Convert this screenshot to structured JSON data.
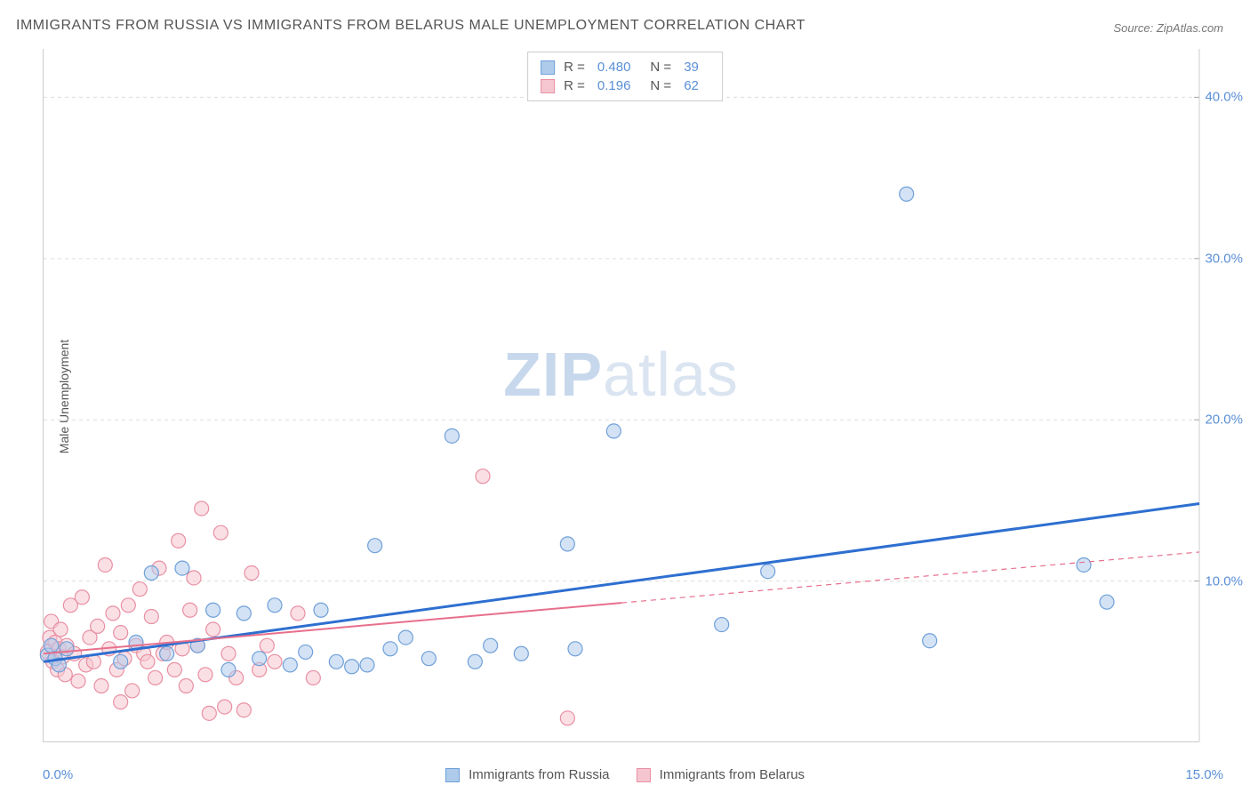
{
  "title": "IMMIGRANTS FROM RUSSIA VS IMMIGRANTS FROM BELARUS MALE UNEMPLOYMENT CORRELATION CHART",
  "source": "Source: ZipAtlas.com",
  "ylabel": "Male Unemployment",
  "watermark_a": "ZIP",
  "watermark_b": "atlas",
  "chart": {
    "type": "scatter",
    "xlim": [
      0,
      15
    ],
    "ylim": [
      0,
      43
    ],
    "y_ticks": [
      10,
      20,
      30,
      40
    ],
    "y_tick_labels": [
      "10.0%",
      "20.0%",
      "30.0%",
      "40.0%"
    ],
    "x_tick_left": "0.0%",
    "x_tick_right": "15.0%",
    "grid_color": "#dddddd",
    "background": "#ffffff",
    "marker_radius": 8,
    "marker_opacity": 0.55,
    "series": [
      {
        "id": "russia",
        "label": "Immigrants from Russia",
        "color_fill": "#aecbeb",
        "color_stroke": "#6fa0d9",
        "r": "0.480",
        "n": "39",
        "trend": {
          "x1": 0,
          "y1": 5.0,
          "x2": 15,
          "y2": 14.8,
          "solid_until_x": 15,
          "stroke_width": 3
        },
        "points": [
          [
            0.05,
            5.4
          ],
          [
            0.1,
            6.0
          ],
          [
            0.15,
            5.2
          ],
          [
            0.2,
            4.8
          ],
          [
            0.3,
            5.8
          ],
          [
            1.0,
            5.0
          ],
          [
            1.2,
            6.2
          ],
          [
            1.4,
            10.5
          ],
          [
            1.6,
            5.5
          ],
          [
            1.8,
            10.8
          ],
          [
            2.0,
            6.0
          ],
          [
            2.2,
            8.2
          ],
          [
            2.4,
            4.5
          ],
          [
            2.6,
            8.0
          ],
          [
            2.8,
            5.2
          ],
          [
            3.0,
            8.5
          ],
          [
            3.2,
            4.8
          ],
          [
            3.4,
            5.6
          ],
          [
            3.6,
            8.2
          ],
          [
            3.8,
            5.0
          ],
          [
            4.0,
            4.7
          ],
          [
            4.3,
            12.2
          ],
          [
            4.5,
            5.8
          ],
          [
            4.7,
            6.5
          ],
          [
            5.0,
            5.2
          ],
          [
            5.3,
            19.0
          ],
          [
            5.6,
            5.0
          ],
          [
            5.8,
            6.0
          ],
          [
            6.2,
            5.5
          ],
          [
            6.8,
            12.3
          ],
          [
            6.9,
            5.8
          ],
          [
            7.4,
            19.3
          ],
          [
            8.8,
            7.3
          ],
          [
            9.4,
            10.6
          ],
          [
            11.2,
            34.0
          ],
          [
            11.5,
            6.3
          ],
          [
            13.5,
            11.0
          ],
          [
            13.8,
            8.7
          ],
          [
            4.2,
            4.8
          ]
        ]
      },
      {
        "id": "belarus",
        "label": "Immigrants from Belarus",
        "color_fill": "#f6c6d0",
        "color_stroke": "#e98fa3",
        "r": "0.196",
        "n": "62",
        "trend": {
          "x1": 0,
          "y1": 5.5,
          "x2": 15,
          "y2": 11.8,
          "solid_until_x": 7.5,
          "stroke_width": 2
        },
        "points": [
          [
            0.05,
            5.6
          ],
          [
            0.08,
            6.5
          ],
          [
            0.1,
            7.5
          ],
          [
            0.12,
            5.0
          ],
          [
            0.15,
            6.2
          ],
          [
            0.18,
            4.5
          ],
          [
            0.2,
            5.8
          ],
          [
            0.22,
            7.0
          ],
          [
            0.25,
            5.3
          ],
          [
            0.28,
            4.2
          ],
          [
            0.3,
            6.0
          ],
          [
            0.35,
            8.5
          ],
          [
            0.4,
            5.5
          ],
          [
            0.45,
            3.8
          ],
          [
            0.5,
            9.0
          ],
          [
            0.55,
            4.8
          ],
          [
            0.6,
            6.5
          ],
          [
            0.65,
            5.0
          ],
          [
            0.7,
            7.2
          ],
          [
            0.75,
            3.5
          ],
          [
            0.8,
            11.0
          ],
          [
            0.85,
            5.8
          ],
          [
            0.9,
            8.0
          ],
          [
            0.95,
            4.5
          ],
          [
            1.0,
            6.8
          ],
          [
            1.05,
            5.2
          ],
          [
            1.1,
            8.5
          ],
          [
            1.15,
            3.2
          ],
          [
            1.2,
            6.0
          ],
          [
            1.25,
            9.5
          ],
          [
            1.3,
            5.5
          ],
          [
            1.35,
            5.0
          ],
          [
            1.4,
            7.8
          ],
          [
            1.45,
            4.0
          ],
          [
            1.5,
            10.8
          ],
          [
            1.55,
            5.5
          ],
          [
            1.6,
            6.2
          ],
          [
            1.7,
            4.5
          ],
          [
            1.75,
            12.5
          ],
          [
            1.8,
            5.8
          ],
          [
            1.85,
            3.5
          ],
          [
            1.9,
            8.2
          ],
          [
            1.95,
            10.2
          ],
          [
            2.0,
            6.0
          ],
          [
            2.05,
            14.5
          ],
          [
            2.1,
            4.2
          ],
          [
            2.15,
            1.8
          ],
          [
            2.2,
            7.0
          ],
          [
            2.3,
            13.0
          ],
          [
            2.35,
            2.2
          ],
          [
            2.4,
            5.5
          ],
          [
            2.5,
            4.0
          ],
          [
            2.6,
            2.0
          ],
          [
            2.7,
            10.5
          ],
          [
            2.8,
            4.5
          ],
          [
            2.9,
            6.0
          ],
          [
            3.0,
            5.0
          ],
          [
            3.3,
            8.0
          ],
          [
            3.5,
            4.0
          ],
          [
            5.7,
            16.5
          ],
          [
            6.8,
            1.5
          ],
          [
            1.0,
            2.5
          ]
        ]
      }
    ]
  },
  "legend": {
    "series1_label": "Immigrants from Russia",
    "series2_label": "Immigrants from Belarus"
  },
  "stats_box": {
    "r_label": "R =",
    "n_label": "N ="
  }
}
